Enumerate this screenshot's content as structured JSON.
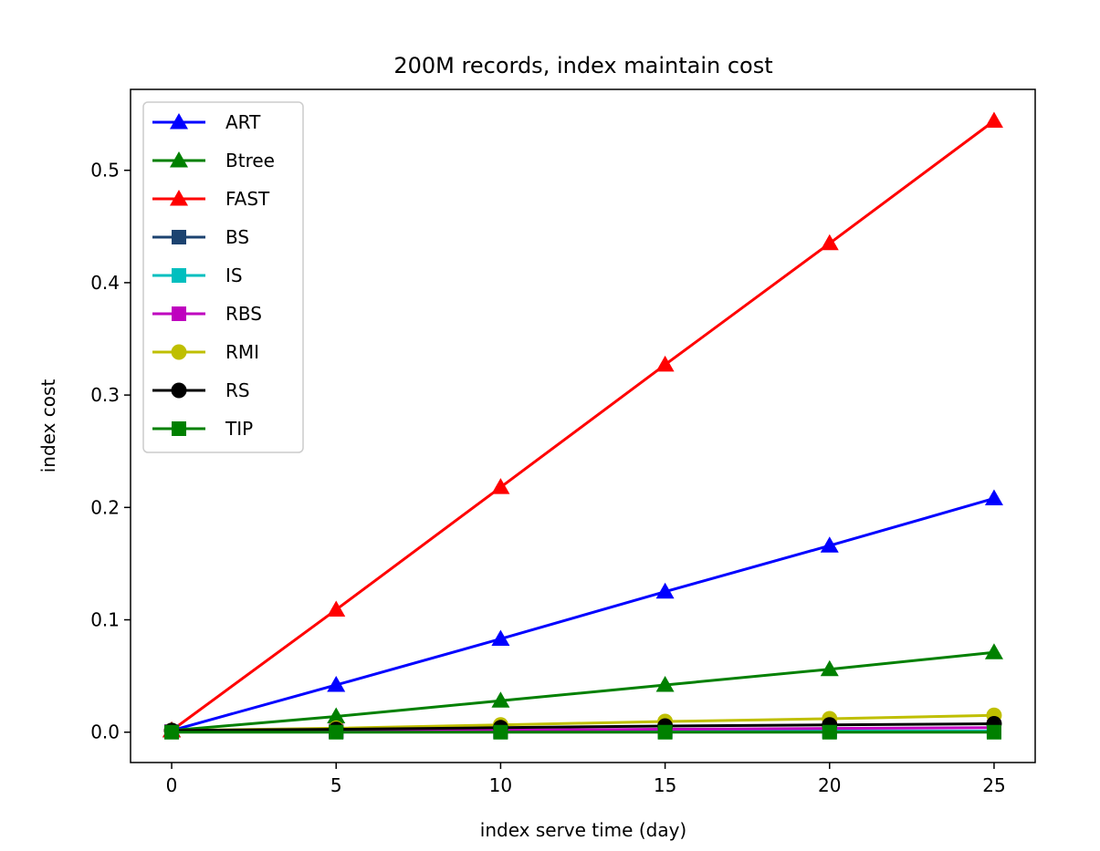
{
  "chart_data": {
    "type": "line",
    "title": "200M records, index maintain cost",
    "xlabel": "index serve time (day)",
    "ylabel": "index cost",
    "x": [
      0,
      5,
      10,
      15,
      20,
      25
    ],
    "xlim": [
      -1.25,
      26.25
    ],
    "ylim": [
      -0.027,
      0.572
    ],
    "xticks": [
      "0",
      "5",
      "10",
      "15",
      "20",
      "25"
    ],
    "yticks": [
      "0.0",
      "0.1",
      "0.2",
      "0.3",
      "0.4",
      "0.5"
    ],
    "xtick_values": [
      0,
      5,
      10,
      15,
      20,
      25
    ],
    "ytick_values": [
      0.0,
      0.1,
      0.2,
      0.3,
      0.4,
      0.5
    ],
    "grid": false,
    "legend_position": "upper-left",
    "series": [
      {
        "name": "ART",
        "color": "#0000ff",
        "marker": "triangle",
        "values": [
          0.0015,
          0.042,
          0.083,
          0.125,
          0.166,
          0.208
        ]
      },
      {
        "name": "Btree",
        "color": "#008000",
        "marker": "triangle",
        "values": [
          0.0015,
          0.014,
          0.028,
          0.042,
          0.056,
          0.071
        ]
      },
      {
        "name": "FAST",
        "color": "#ff0000",
        "marker": "triangle",
        "values": [
          0.0015,
          0.109,
          0.218,
          0.327,
          0.435,
          0.544
        ]
      },
      {
        "name": "BS",
        "color": "#1c4370",
        "marker": "square",
        "values": [
          0.0005,
          0.0006,
          0.0007,
          0.0008,
          0.0009,
          0.001
        ]
      },
      {
        "name": "IS",
        "color": "#00bfbf",
        "marker": "square",
        "values": [
          0.0005,
          0.0006,
          0.0007,
          0.0008,
          0.0009,
          0.001
        ]
      },
      {
        "name": "RBS",
        "color": "#bf00bf",
        "marker": "square",
        "values": [
          0.0005,
          0.0012,
          0.0019,
          0.0026,
          0.0033,
          0.004
        ]
      },
      {
        "name": "RMI",
        "color": "#bfbf00",
        "marker": "circle",
        "values": [
          0.0015,
          0.0035,
          0.0065,
          0.0095,
          0.012,
          0.015
        ]
      },
      {
        "name": "RS",
        "color": "#000000",
        "marker": "circle",
        "values": [
          0.0015,
          0.0025,
          0.004,
          0.0055,
          0.0065,
          0.0075
        ]
      },
      {
        "name": "TIP",
        "color": "#008000",
        "marker": "square",
        "values": [
          0.0,
          0.0,
          0.0,
          0.0,
          0.0,
          0.0
        ]
      }
    ]
  }
}
